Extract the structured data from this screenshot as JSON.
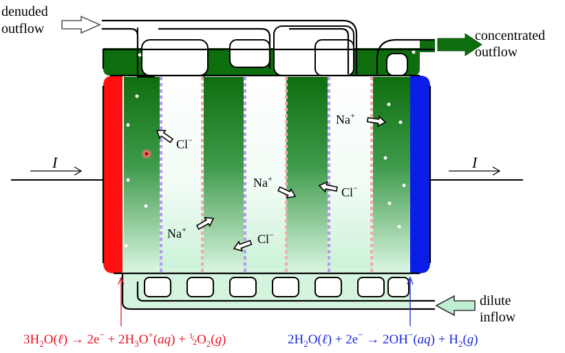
{
  "labels": {
    "denuded": [
      "denuded",
      "outflow"
    ],
    "concentrated": [
      "concentrated",
      "outflow"
    ],
    "dilute": [
      "dilute",
      "inflow"
    ],
    "current": "I"
  },
  "ions": {
    "na": "Na",
    "cl": "Cl",
    "plus": "+",
    "minus": "−"
  },
  "equations": {
    "anode": {
      "p1": "3H",
      "s1": "2",
      "p2": "O(",
      "ell": "ℓ",
      "p3": ") → 2e",
      "sup1": "−",
      "p4": " + 2H",
      "s2": "3",
      "p5": "O",
      "sup2": "+",
      "p6": "(",
      "aq": "aq",
      "p7": ") + ",
      "frac_num": "1",
      "frac_den": "2",
      "p8": "O",
      "s3": "2",
      "p9": "(",
      "g": "g",
      "p10": ")",
      "color": "#e8101f"
    },
    "cathode": {
      "p1": "2H",
      "s1": "2",
      "p2": "O(",
      "ell": "ℓ",
      "p3": ") + 2e",
      "sup1": "−",
      "p4": " → 2OH",
      "sup2": "−",
      "p5": "(",
      "aq": "aq",
      "p6": ") + H",
      "s2": "2",
      "p7": "(",
      "g": "g",
      "p8": ")",
      "color": "#1a28d8"
    }
  },
  "colors": {
    "anode": "#ff1010",
    "cathode": "#0a1ee8",
    "concentrate": "#0e6e0e",
    "dilute_light": "#e8fbef",
    "cation_membrane": "#f3aaaa",
    "anion_membrane": "#b99af2",
    "outline": "#000000"
  }
}
